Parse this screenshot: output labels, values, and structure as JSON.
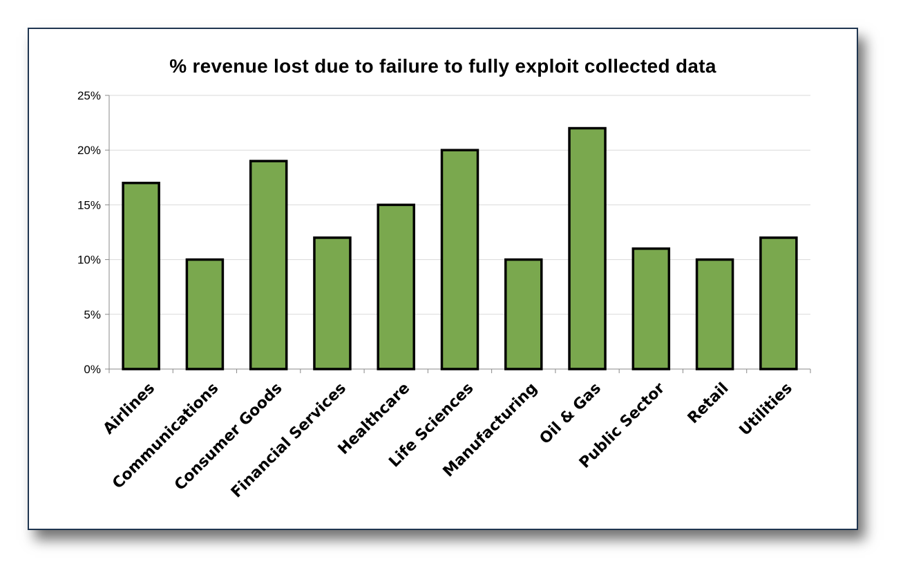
{
  "chart_data": {
    "type": "bar",
    "title": "% revenue lost due to failure to fully exploit collected data",
    "xlabel": "",
    "ylabel": "",
    "categories": [
      "Airlines",
      "Communications",
      "Consumer Goods",
      "Financial Services",
      "Healthcare",
      "Life Sciences",
      "Manufacturing",
      "Oil & Gas",
      "Public Sector",
      "Retail",
      "Utilities"
    ],
    "values": [
      17,
      10,
      19,
      12,
      15,
      20,
      10,
      22,
      11,
      10,
      12
    ],
    "ylim": [
      0,
      25
    ],
    "yticks": [
      "0%",
      "5%",
      "10%",
      "15%",
      "20%",
      "25%"
    ],
    "grid": true,
    "legend": "none",
    "colors": {
      "bar_fill": "#7aa84e",
      "bar_stroke": "#000000",
      "grid": "#d9d9d9",
      "frame": "#1f3550"
    }
  }
}
